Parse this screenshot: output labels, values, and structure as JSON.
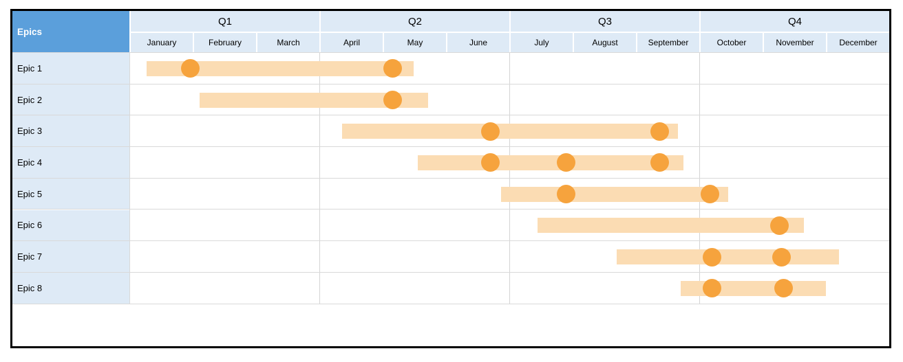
{
  "chart_data": {
    "type": "gantt",
    "corner_label": "Epics",
    "quarters": [
      "Q1",
      "Q2",
      "Q3",
      "Q4"
    ],
    "months": [
      "January",
      "February",
      "March",
      "April",
      "May",
      "June",
      "July",
      "August",
      "September",
      "October",
      "November",
      "December"
    ],
    "axis_note": "bar and milestone positions are fractional months; 0 = start of January, 12 = end of December",
    "epics": [
      {
        "label": "Epic 1",
        "bar": [
          0.27,
          4.49
        ],
        "milestones": [
          0.96,
          4.16
        ]
      },
      {
        "label": "Epic 2",
        "bar": [
          1.11,
          4.72
        ],
        "milestones": [
          4.16
        ]
      },
      {
        "label": "Epic 3",
        "bar": [
          3.36,
          8.66
        ],
        "milestones": [
          5.7,
          8.37
        ]
      },
      {
        "label": "Epic 4",
        "bar": [
          4.55,
          8.75
        ],
        "milestones": [
          5.7,
          6.9,
          8.37
        ]
      },
      {
        "label": "Epic 5",
        "bar": [
          5.87,
          9.46
        ],
        "milestones": [
          6.9,
          9.17
        ]
      },
      {
        "label": "Epic 6",
        "bar": [
          6.45,
          10.65
        ],
        "milestones": [
          10.27
        ]
      },
      {
        "label": "Epic 7",
        "bar": [
          7.7,
          11.21
        ],
        "milestones": [
          9.2,
          10.3
        ]
      },
      {
        "label": "Epic 8",
        "bar": [
          8.71,
          11.0
        ],
        "milestones": [
          9.2,
          10.33
        ]
      }
    ],
    "legend": "none",
    "gridlines": "quarter boundaries vertical, row separators horizontal",
    "colors": {
      "header_fill": "#5B9FDB",
      "header_text": "#FFFFFF",
      "subheader_fill": "#DEEAF6",
      "row_label_fill": "#DEEAF6",
      "bar_fill": "#FBDCB3",
      "milestone_fill": "#F6A33D",
      "gridline": "#D9D9D9",
      "quarter_line": "#D4D4D4",
      "outer_border": "#000000"
    }
  }
}
